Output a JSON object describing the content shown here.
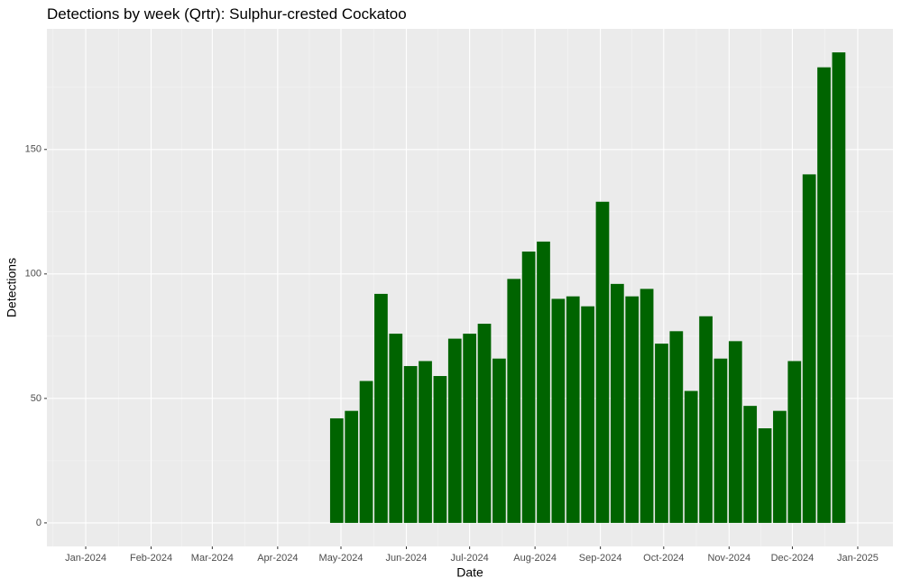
{
  "chart_data": {
    "type": "bar",
    "title": "Detections by week (Qrtr): Sulphur-crested Cockatoo",
    "x_label": "Date",
    "y_label": "Detections",
    "x": [
      119,
      126,
      133,
      140,
      147,
      154,
      161,
      168,
      175,
      182,
      189,
      196,
      203,
      210,
      217,
      224,
      231,
      238,
      245,
      252,
      259,
      266,
      273,
      280,
      287,
      294,
      301,
      308,
      315,
      322,
      329,
      336,
      343,
      350,
      357
    ],
    "values": [
      42,
      45,
      57,
      92,
      76,
      63,
      65,
      59,
      74,
      76,
      80,
      66,
      98,
      109,
      113,
      90,
      91,
      87,
      129,
      96,
      91,
      94,
      72,
      77,
      53,
      83,
      66,
      73,
      47,
      38,
      45,
      65,
      140,
      183,
      189
    ],
    "color": "#006400",
    "xlim": [
      -18.4,
      382.7
    ],
    "xticks": [
      {
        "value": 0,
        "label": "Jan-2024"
      },
      {
        "value": 31,
        "label": "Feb-2024"
      },
      {
        "value": 60,
        "label": "Mar-2024"
      },
      {
        "value": 91,
        "label": "Apr-2024"
      },
      {
        "value": 121,
        "label": "May-2024"
      },
      {
        "value": 152,
        "label": "Jun-2024"
      },
      {
        "value": 182,
        "label": "Jul-2024"
      },
      {
        "value": 213,
        "label": "Aug-2024"
      },
      {
        "value": 244,
        "label": "Sep-2024"
      },
      {
        "value": 274,
        "label": "Oct-2024"
      },
      {
        "value": 305,
        "label": "Nov-2024"
      },
      {
        "value": 335,
        "label": "Dec-2024"
      },
      {
        "value": 366,
        "label": "Jan-2025"
      }
    ],
    "ylim": [
      -9.45,
      198.45
    ],
    "yticks": [
      0,
      50,
      100,
      150
    ],
    "grid": true
  }
}
